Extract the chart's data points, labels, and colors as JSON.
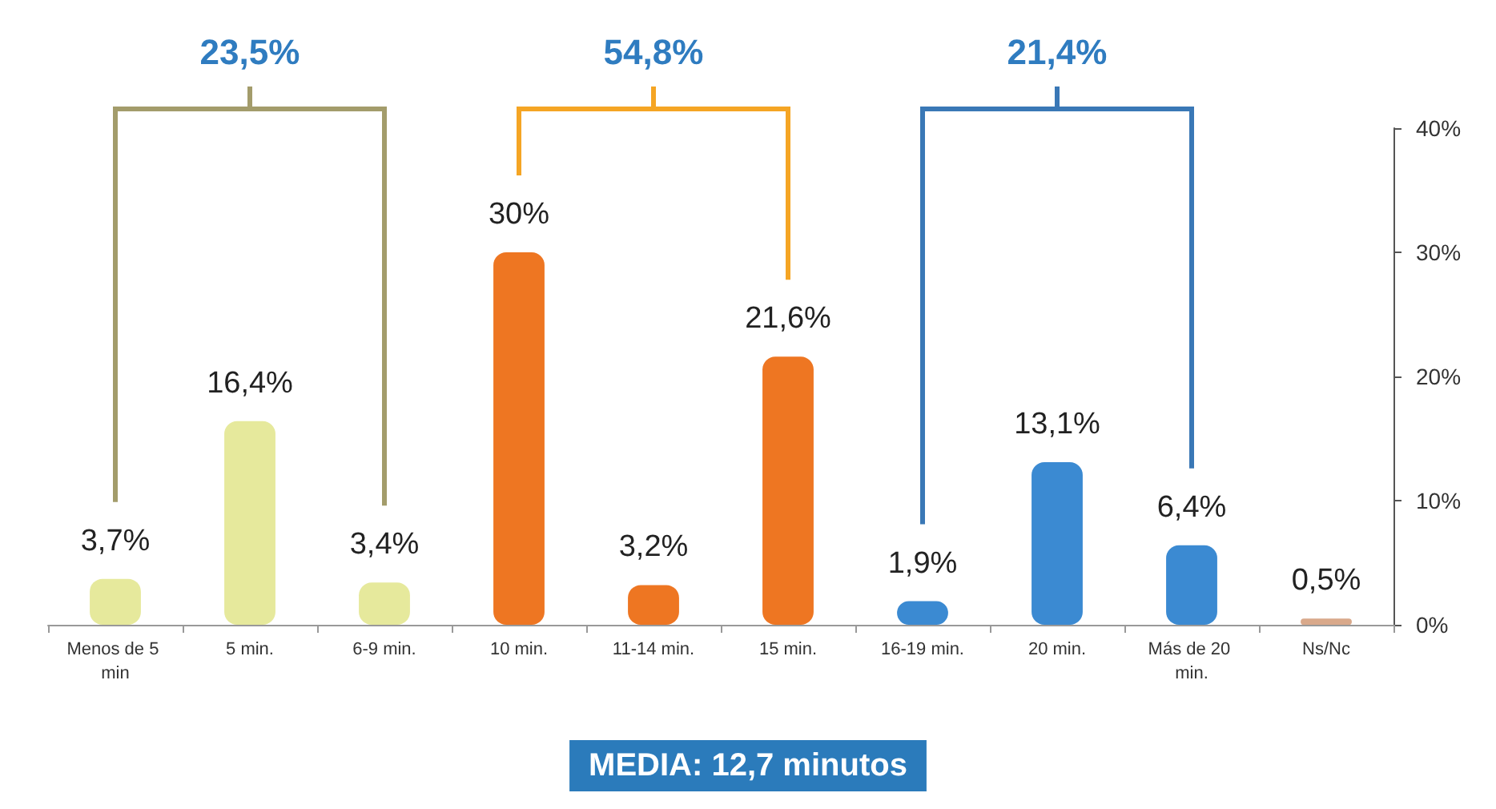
{
  "chart_data": {
    "type": "bar",
    "categories": [
      "Menos de 5 min",
      "5 min.",
      "6-9 min.",
      "10 min.",
      "11-14 min.",
      "15 min.",
      "16-19 min.",
      "20 min.",
      "Más de 20 min.",
      "Ns/Nc"
    ],
    "values": [
      3.7,
      16.4,
      3.4,
      30,
      3.2,
      21.6,
      1.9,
      13.1,
      6.4,
      0.5
    ],
    "colors": [
      "#e6e99c",
      "#e6e99c",
      "#e6e99c",
      "#ee7622",
      "#ee7622",
      "#ee7622",
      "#3b8ad2",
      "#3b8ad2",
      "#3b8ad2",
      "#d9a98b"
    ],
    "value_labels": [
      "3,7%",
      "16,4%",
      "3,4%",
      "30%",
      "3,2%",
      "21,6%",
      "1,9%",
      "13,1%",
      "6,4%",
      "0,5%"
    ],
    "ylim": [
      0,
      40
    ],
    "yticks": [
      {
        "value": 0,
        "label": "0%"
      },
      {
        "value": 10,
        "label": "10%"
      },
      {
        "value": 20,
        "label": "20%"
      },
      {
        "value": 30,
        "label": "30%"
      },
      {
        "value": 40,
        "label": "40%"
      }
    ],
    "grid": false,
    "annotations": [
      "23,5%",
      "54,8%",
      "21,4%",
      "MEDIA: 12,7 minutos"
    ]
  }
}
